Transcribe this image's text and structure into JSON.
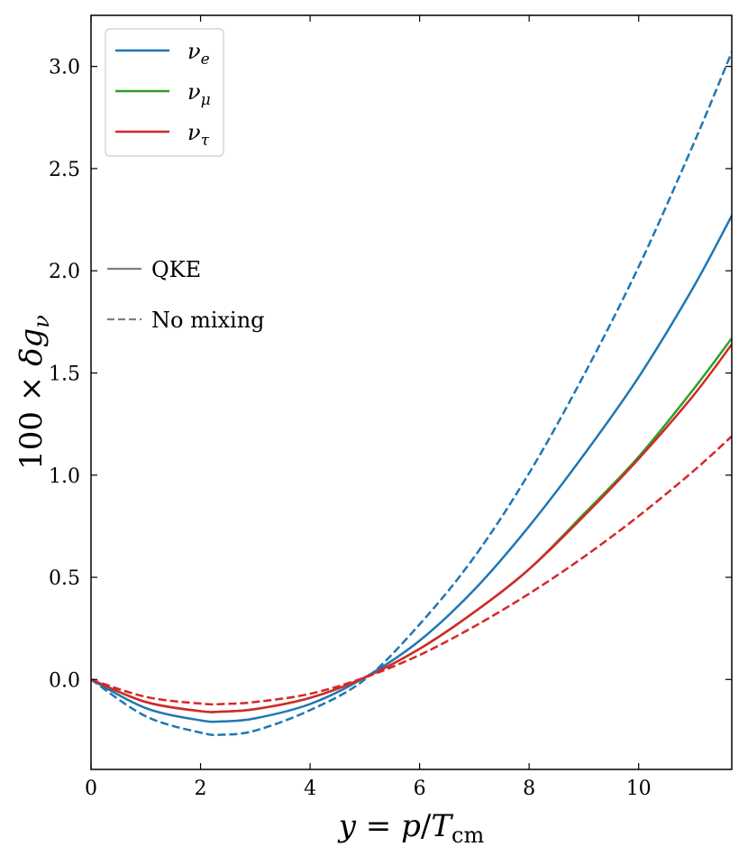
{
  "chart_data": {
    "type": "line",
    "title": "",
    "xlabel": "y = p/T_cm",
    "ylabel": "100 × δg_ν",
    "xlim": [
      0,
      11.7
    ],
    "ylim": [
      -0.44,
      3.25
    ],
    "xticks": [
      0,
      2,
      4,
      6,
      8,
      10
    ],
    "xtick_labels": [
      "0",
      "2",
      "4",
      "6",
      "8",
      "10"
    ],
    "yticks": [
      0.0,
      0.5,
      1.0,
      1.5,
      2.0,
      2.5,
      3.0
    ],
    "ytick_labels": [
      "0.0",
      "0.5",
      "1.0",
      "1.5",
      "2.0",
      "2.5",
      "3.0"
    ],
    "grid": false,
    "legend_position": "upper-left",
    "legend_entries": [
      {
        "label": "ν_e",
        "color": "#1f77b4"
      },
      {
        "label": "ν_μ",
        "color": "#2ca02c"
      },
      {
        "label": "ν_τ",
        "color": "#d62728"
      }
    ],
    "style_legend": [
      {
        "label": "QKE",
        "style": "solid",
        "color": "#808080"
      },
      {
        "label": "No mixing",
        "style": "dashed",
        "color": "#808080"
      }
    ],
    "series": [
      {
        "name": "ν_e",
        "style": "solid",
        "color": "#1f77b4",
        "x": [
          0,
          1,
          2,
          2.4,
          3,
          4,
          5,
          6,
          7,
          8,
          9,
          10,
          11,
          11.7
        ],
        "y": [
          0,
          -0.14,
          -0.2,
          -0.205,
          -0.19,
          -0.12,
          0.01,
          0.19,
          0.44,
          0.75,
          1.1,
          1.48,
          1.92,
          2.27
        ]
      },
      {
        "name": "ν_μ",
        "style": "solid",
        "color": "#2ca02c",
        "x": [
          0,
          1,
          2,
          2.4,
          3,
          4,
          5,
          6,
          7,
          8,
          9,
          10,
          11,
          11.7
        ],
        "y": [
          0,
          -0.11,
          -0.155,
          -0.157,
          -0.145,
          -0.09,
          0.01,
          0.15,
          0.33,
          0.54,
          0.81,
          1.09,
          1.42,
          1.67
        ]
      },
      {
        "name": "ν_τ",
        "style": "solid",
        "color": "#d62728",
        "x": [
          0,
          1,
          2,
          2.4,
          3,
          4,
          5,
          6,
          7,
          8,
          9,
          10,
          11,
          11.7
        ],
        "y": [
          0,
          -0.11,
          -0.155,
          -0.157,
          -0.145,
          -0.09,
          0.01,
          0.15,
          0.33,
          0.54,
          0.8,
          1.08,
          1.39,
          1.64
        ]
      },
      {
        "name": "ν_e",
        "style": "dashed",
        "color": "#1f77b4",
        "x": [
          0,
          1,
          2,
          2.4,
          3,
          4,
          5,
          6,
          7,
          8,
          9,
          10,
          11,
          11.7
        ],
        "y": [
          0,
          -0.18,
          -0.26,
          -0.27,
          -0.25,
          -0.15,
          0.0,
          0.27,
          0.6,
          1.01,
          1.49,
          2.02,
          2.62,
          3.07
        ]
      },
      {
        "name": "ν_τ",
        "style": "dashed",
        "color": "#d62728",
        "x": [
          0,
          1,
          2,
          2.4,
          3,
          4,
          5,
          6,
          7,
          8,
          9,
          10,
          11,
          11.7
        ],
        "y": [
          0,
          -0.085,
          -0.118,
          -0.12,
          -0.11,
          -0.07,
          0.01,
          0.12,
          0.26,
          0.42,
          0.6,
          0.8,
          1.02,
          1.19
        ]
      }
    ]
  }
}
